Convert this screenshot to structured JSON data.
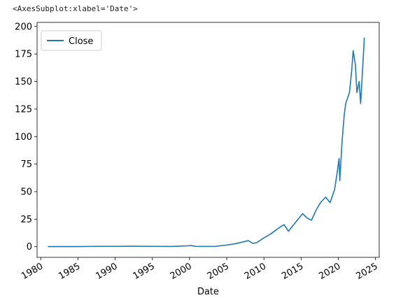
{
  "repr_text": "<AxesSubplot:xlabel='Date'>",
  "colors": {
    "series": "#1f77b4",
    "axes": "#000000",
    "legend_border": "#cccccc"
  },
  "chart_data": {
    "type": "line",
    "title": "",
    "xlabel": "Date",
    "ylabel": "",
    "xlim": [
      1979.5,
      2025.5
    ],
    "ylim": [
      -9.7,
      203.7
    ],
    "grid": false,
    "legend": "upper-left",
    "x_ticks": [
      1980,
      1985,
      1990,
      1995,
      2000,
      2005,
      2010,
      2015,
      2020,
      2025
    ],
    "x_tick_labels": [
      "1980",
      "1985",
      "1990",
      "1995",
      "2000",
      "2005",
      "2010",
      "2015",
      "2020",
      "2025"
    ],
    "y_ticks": [
      0,
      25,
      50,
      75,
      100,
      125,
      150,
      175,
      200
    ],
    "y_tick_labels": [
      "0",
      "25",
      "50",
      "75",
      "100",
      "125",
      "150",
      "175",
      "200"
    ],
    "series": [
      {
        "name": "Close",
        "x": [
          1980.95,
          1983.0,
          1985.0,
          1987.5,
          1990.0,
          1992.0,
          1995.0,
          1997.5,
          1999.5,
          2000.2,
          2000.8,
          2002.0,
          2003.5,
          2005.0,
          2006.0,
          2007.0,
          2007.9,
          2008.5,
          2009.0,
          2010.0,
          2011.0,
          2012.0,
          2012.7,
          2013.3,
          2014.0,
          2014.6,
          2015.2,
          2015.8,
          2016.4,
          2017.0,
          2017.6,
          2018.3,
          2018.9,
          2019.5,
          2019.8,
          2020.1,
          2020.2,
          2020.5,
          2020.8,
          2021.0,
          2021.5,
          2021.8,
          2022.0,
          2022.3,
          2022.5,
          2022.8,
          2023.0,
          2023.3,
          2023.5
        ],
        "y": [
          0.1,
          0.1,
          0.1,
          0.3,
          0.3,
          0.4,
          0.3,
          0.2,
          0.7,
          1.0,
          0.3,
          0.2,
          0.3,
          1.5,
          2.5,
          4.0,
          5.5,
          3.0,
          3.5,
          8.0,
          12.0,
          17.0,
          20.0,
          14.0,
          20.0,
          25.0,
          30.0,
          26.0,
          24.0,
          33.0,
          40.0,
          45.0,
          40.0,
          52.0,
          65.0,
          80.0,
          60.0,
          95.0,
          120.0,
          130.0,
          140.0,
          160.0,
          178.0,
          165.0,
          140.0,
          150.0,
          130.0,
          165.0,
          190.0
        ]
      }
    ]
  }
}
